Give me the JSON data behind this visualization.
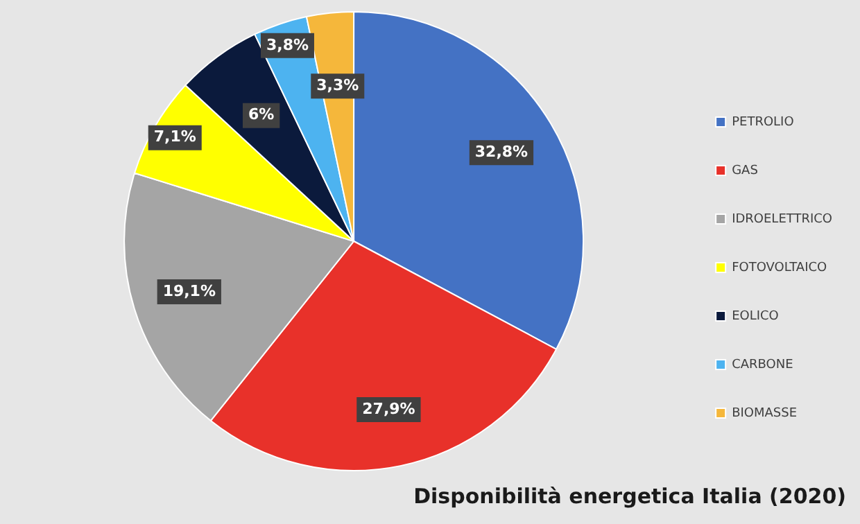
{
  "chart_data": {
    "type": "pie",
    "title": "Disponibilità energetica Italia (2020)",
    "categories": [
      "PETROLIO",
      "GAS",
      "IDROELETTRICO",
      "FOTOVOLTAICO",
      "EOLICO",
      "CARBONE",
      "BIOMASSE"
    ],
    "values": [
      32.8,
      27.9,
      19.1,
      7.1,
      6,
      3.8,
      3.3
    ],
    "value_labels": [
      "32,8%",
      "27,9%",
      "19,1%",
      "7,1%",
      "6%",
      "3,8%",
      "3,3%"
    ],
    "colors": [
      "#4472c4",
      "#e8312a",
      "#a5a5a5",
      "#ffff00",
      "#0b1a3c",
      "#4db3f0",
      "#f5b73b"
    ],
    "legend": "right"
  }
}
